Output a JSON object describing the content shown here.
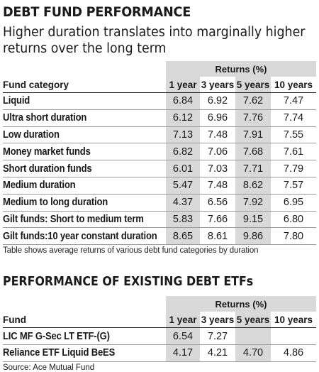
{
  "title": "DEBT FUND PERFORMANCE",
  "subtitle": "Higher duration translates into marginally higher returns over the long term",
  "performance_table": {
    "returns_label": "Returns (%)",
    "headers": [
      "Fund category",
      "1 year",
      "3 years",
      "5 years",
      "10 years"
    ],
    "rows": [
      {
        "name": "Liquid",
        "values": [
          "6.84",
          "6.92",
          "7.62",
          "7.47"
        ]
      },
      {
        "name": "Ultra short duration",
        "values": [
          "6.12",
          "6.96",
          "7.76",
          "7.74"
        ]
      },
      {
        "name": "Low duration",
        "values": [
          "7.13",
          "7.48",
          "7.91",
          "7.55"
        ]
      },
      {
        "name": "Money market funds",
        "values": [
          "6.82",
          "7.06",
          "7.68",
          "7.61"
        ]
      },
      {
        "name": "Short duration funds",
        "values": [
          "6.01",
          "7.03",
          "7.71",
          "7.79"
        ]
      },
      {
        "name": "Medium duration",
        "values": [
          "5.47",
          "7.48",
          "8.62",
          "7.57"
        ]
      },
      {
        "name": "Medium to long duration",
        "values": [
          "4.37",
          "6.56",
          "7.92",
          "6.95"
        ]
      },
      {
        "name": "Gilt funds: Short to medium term",
        "values": [
          "5.83",
          "7.66",
          "9.15",
          "6.80"
        ]
      },
      {
        "name": "Gilt funds:10 year constant duration",
        "values": [
          "8.65",
          "8.61",
          "9.86",
          "7.80"
        ]
      }
    ],
    "note": "Table shows average returns of various debt fund categories by duration"
  },
  "etf_title": "PERFORMANCE OF EXISTING DEBT ETFs",
  "etf_table": {
    "returns_label": "Returns (%)",
    "headers": [
      "Fund",
      "1 year",
      "3 years",
      "5 years",
      "10 years"
    ],
    "rows": [
      {
        "name": "LIC MF G-Sec LT ETF-(G)",
        "values": [
          "6.54",
          "7.27",
          "",
          ""
        ]
      },
      {
        "name": "Reliance ETF Liquid BeES",
        "values": [
          "4.17",
          "4.21",
          "4.70",
          "4.86"
        ]
      }
    ]
  },
  "source": "Source: Ace Mutual Fund",
  "colors": {
    "shade": "#d9d9d9",
    "text": "#1a1a1a",
    "rule": "#9a9a9a"
  }
}
